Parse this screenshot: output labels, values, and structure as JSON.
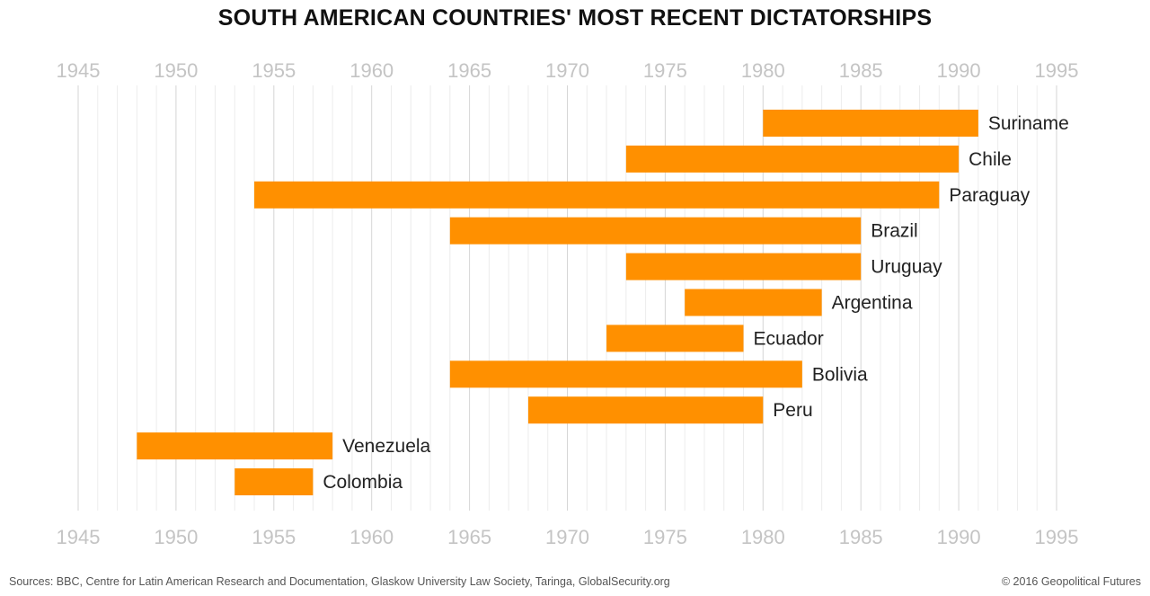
{
  "chart_data": {
    "type": "bar",
    "orientation": "horizontal-range",
    "title": "SOUTH AMERICAN COUNTRIES' MOST RECENT DICTATORSHIPS",
    "xlim": [
      1945,
      1995
    ],
    "x_ticks": [
      1945,
      1950,
      1955,
      1960,
      1965,
      1970,
      1975,
      1980,
      1985,
      1990,
      1995
    ],
    "grid": true,
    "bar_color": "#ff9000",
    "categories": [
      "Suriname",
      "Chile",
      "Paraguay",
      "Brazil",
      "Uruguay",
      "Argentina",
      "Ecuador",
      "Bolivia",
      "Peru",
      "Venezuela",
      "Colombia"
    ],
    "series": [
      {
        "start": [
          1980,
          1973,
          1954,
          1964,
          1973,
          1976,
          1972,
          1964,
          1968,
          1948,
          1953
        ],
        "end": [
          1991,
          1990,
          1989,
          1985,
          1985,
          1983,
          1979,
          1982,
          1980,
          1958,
          1957
        ]
      }
    ]
  },
  "footer": {
    "sources": "Sources: BBC, Centre for Latin American Research and Documentation, Glaskow University Law Society, Taringa, GlobalSecurity.org",
    "copyright": "© 2016 Geopolitical Futures"
  }
}
